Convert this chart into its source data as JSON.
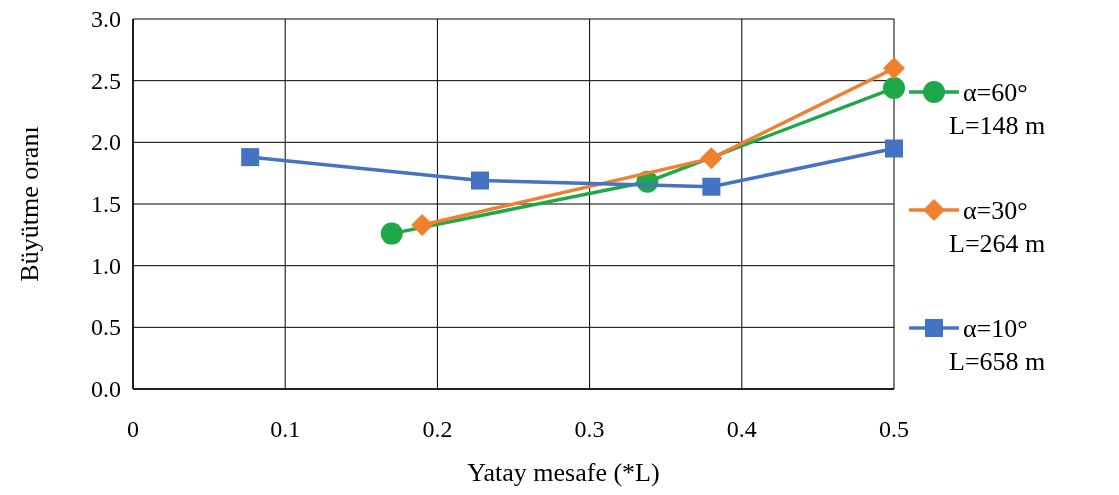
{
  "chart_data": {
    "type": "line",
    "xlabel": "Yatay mesafe (*L)",
    "ylabel": "Büyütme oranı",
    "xlim": [
      0,
      0.5
    ],
    "xticks": [
      {
        "value": 0,
        "label": "0"
      },
      0.1,
      0.2,
      0.3,
      0.4,
      0.5
    ],
    "ylim": [
      0,
      3
    ],
    "yticks": [
      {
        "value": 0,
        "label": "0.0"
      },
      0.5,
      {
        "value": 1,
        "label": "1.0"
      },
      1.5,
      {
        "value": 2,
        "label": "2.0"
      },
      2.5,
      {
        "value": 3,
        "label": "3.0"
      }
    ],
    "grid": true,
    "legend": "right",
    "series": [
      {
        "name": "α=60°\nL=148 m",
        "color": "#1fa84a",
        "marker": "circle",
        "x": [
          0.17,
          0.338,
          0.5
        ],
        "values": [
          1.26,
          1.68,
          2.44
        ]
      },
      {
        "name": "α=30°\nL=264 m",
        "color": "#f07f2e",
        "marker": "diamond",
        "x": [
          0.19,
          0.38,
          0.5
        ],
        "values": [
          1.33,
          1.87,
          2.6
        ]
      },
      {
        "name": "α=10°\nL=658 m",
        "color": "#4472c4",
        "marker": "square",
        "x": [
          0.077,
          0.228,
          0.38,
          0.5
        ],
        "values": [
          1.88,
          1.69,
          1.64,
          1.95
        ]
      }
    ]
  }
}
